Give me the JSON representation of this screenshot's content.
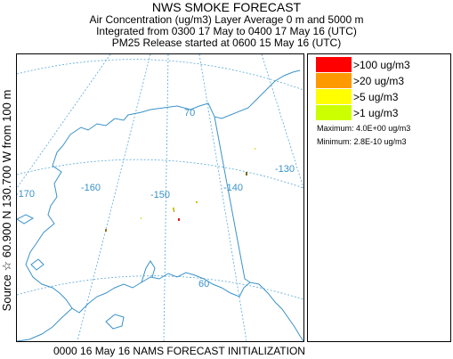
{
  "title": "NWS SMOKE FORECAST",
  "subtitle_lines": [
    "Air Concentration (ug/m3) Layer Average    0 m and  5000 m",
    "Integrated from 0300 17 May to 0400 17 May 16 (UTC)",
    "PM25 Release started at 0600 15 May 16 (UTC)"
  ],
  "source_label": "Source ☆ 60.900 N 130.700  W      from  100 m",
  "footer": "0000 16 May 16 NAMS FORECAST INITIALIZATION",
  "map": {
    "longitude_labels": [
      "-170",
      "-160",
      "-150",
      "-140",
      "-130"
    ],
    "latitude_labels": [
      "70",
      "60"
    ],
    "colors": {
      "coastline": "#3a92c9",
      "gridline": "#5aa8d8",
      "boundary": "#3a92c9"
    },
    "smoke_points": [
      {
        "name": "smoke-point-red",
        "color": "#e81919"
      },
      {
        "name": "smoke-point-yellow-1",
        "color": "#c8c800"
      },
      {
        "name": "smoke-point-orange",
        "color": "#b8860b"
      },
      {
        "name": "smoke-point-yellow-2",
        "color": "#c8c800"
      },
      {
        "name": "smoke-point-dark-1",
        "color": "#8a7a10"
      },
      {
        "name": "smoke-point-dark-2",
        "color": "#7a6a10"
      },
      {
        "name": "smoke-point-yellow-3",
        "color": "#d8d800"
      },
      {
        "name": "smoke-point-yellow-4",
        "color": "#d8d800"
      }
    ]
  },
  "legend": {
    "items": [
      {
        "label": ">100 ug/m3",
        "color": "#ff0000"
      },
      {
        "label": ">20 ug/m3",
        "color": "#ff9900"
      },
      {
        "label": ">5 ug/m3",
        "color": "#ffff00"
      },
      {
        "label": ">1 ug/m3",
        "color": "#ccff00"
      }
    ],
    "maximum": "Maximum: 4.0E+00 ug/m3",
    "minimum": "Minimum: 2.8E-10 ug/m3"
  }
}
